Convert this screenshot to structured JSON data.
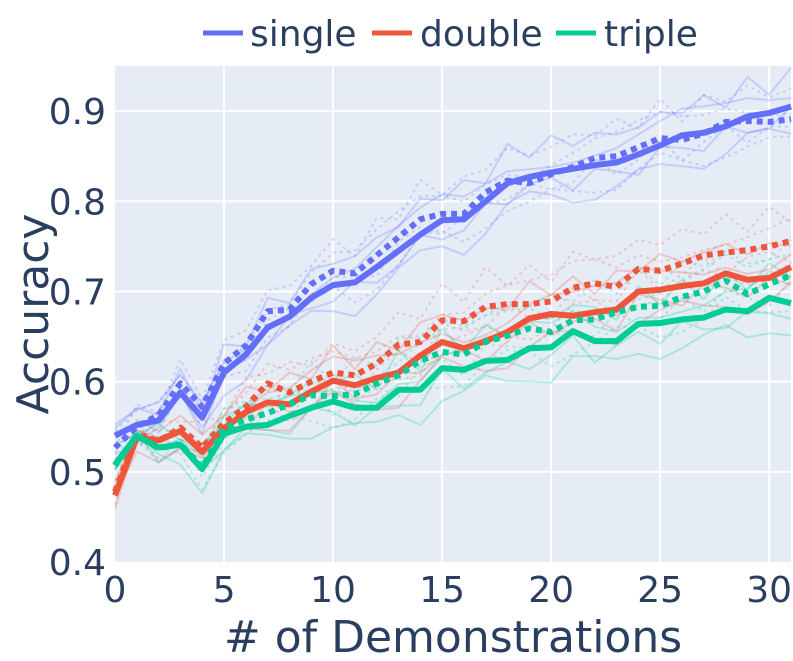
{
  "chart_data": {
    "type": "line",
    "xlabel": "# of Demonstrations",
    "ylabel": "Accuracy",
    "xlim": [
      0,
      31
    ],
    "ylim": [
      0.4,
      0.95
    ],
    "xticks": [
      0,
      5,
      10,
      15,
      20,
      25,
      30
    ],
    "yticks": [
      0.4,
      0.5,
      0.6,
      0.7,
      0.8,
      0.9
    ],
    "xtick_labels": [
      "0",
      "5",
      "10",
      "15",
      "20",
      "25",
      "30"
    ],
    "ytick_labels": [
      "0.4",
      "0.5",
      "0.6",
      "0.7",
      "0.8",
      "0.9"
    ],
    "legend": {
      "placement": "top",
      "entries": [
        "single",
        "double",
        "triple"
      ]
    },
    "colors": {
      "single": "#636efa",
      "double": "#ef553b",
      "triple": "#00cc96",
      "plot_bg": "#e5ecf6",
      "grid": "#ffffff",
      "text": "#2a3f5f"
    },
    "x": [
      0,
      1,
      2,
      3,
      4,
      5,
      6,
      7,
      8,
      9,
      10,
      11,
      12,
      13,
      14,
      15,
      16,
      17,
      18,
      19,
      20,
      21,
      22,
      23,
      24,
      25,
      26,
      27,
      28,
      29,
      30,
      31
    ],
    "series": [
      {
        "name": "single",
        "style": "solid",
        "values": [
          0.54,
          0.552,
          0.557,
          0.588,
          0.56,
          0.61,
          0.63,
          0.66,
          0.672,
          0.693,
          0.707,
          0.71,
          0.727,
          0.745,
          0.763,
          0.779,
          0.78,
          0.8,
          0.82,
          0.827,
          0.832,
          0.836,
          0.84,
          0.843,
          0.852,
          0.862,
          0.873,
          0.876,
          0.883,
          0.894,
          0.898,
          0.905
        ]
      },
      {
        "name": "single",
        "style": "dotted",
        "values": [
          0.527,
          0.55,
          0.563,
          0.598,
          0.572,
          0.62,
          0.64,
          0.678,
          0.68,
          0.708,
          0.723,
          0.72,
          0.74,
          0.76,
          0.78,
          0.786,
          0.786,
          0.81,
          0.823,
          0.82,
          0.83,
          0.838,
          0.848,
          0.85,
          0.86,
          0.87,
          0.868,
          0.875,
          0.888,
          0.889,
          0.888,
          0.891
        ]
      },
      {
        "name": "double",
        "style": "solid",
        "values": [
          0.474,
          0.538,
          0.535,
          0.545,
          0.522,
          0.548,
          0.566,
          0.577,
          0.575,
          0.589,
          0.601,
          0.596,
          0.604,
          0.61,
          0.629,
          0.644,
          0.637,
          0.645,
          0.655,
          0.67,
          0.675,
          0.673,
          0.677,
          0.68,
          0.7,
          0.702,
          0.706,
          0.709,
          0.72,
          0.713,
          0.715,
          0.727
        ]
      },
      {
        "name": "double",
        "style": "dotted",
        "values": [
          0.478,
          0.542,
          0.534,
          0.549,
          0.527,
          0.554,
          0.572,
          0.598,
          0.588,
          0.6,
          0.61,
          0.607,
          0.62,
          0.641,
          0.644,
          0.668,
          0.667,
          0.683,
          0.686,
          0.686,
          0.689,
          0.704,
          0.709,
          0.705,
          0.725,
          0.723,
          0.731,
          0.74,
          0.743,
          0.746,
          0.75,
          0.756
        ]
      },
      {
        "name": "triple",
        "style": "solid",
        "values": [
          0.508,
          0.54,
          0.527,
          0.53,
          0.503,
          0.542,
          0.55,
          0.552,
          0.562,
          0.571,
          0.578,
          0.571,
          0.571,
          0.591,
          0.591,
          0.615,
          0.613,
          0.623,
          0.624,
          0.637,
          0.638,
          0.656,
          0.645,
          0.645,
          0.664,
          0.665,
          0.669,
          0.671,
          0.68,
          0.678,
          0.693,
          0.687
        ]
      },
      {
        "name": "triple",
        "style": "dotted",
        "values": [
          0.507,
          0.54,
          0.526,
          0.531,
          0.505,
          0.548,
          0.558,
          0.565,
          0.575,
          0.585,
          0.584,
          0.586,
          0.598,
          0.607,
          0.623,
          0.633,
          0.63,
          0.644,
          0.651,
          0.659,
          0.655,
          0.668,
          0.669,
          0.677,
          0.683,
          0.684,
          0.694,
          0.7,
          0.712,
          0.697,
          0.708,
          0.718
        ]
      }
    ]
  }
}
